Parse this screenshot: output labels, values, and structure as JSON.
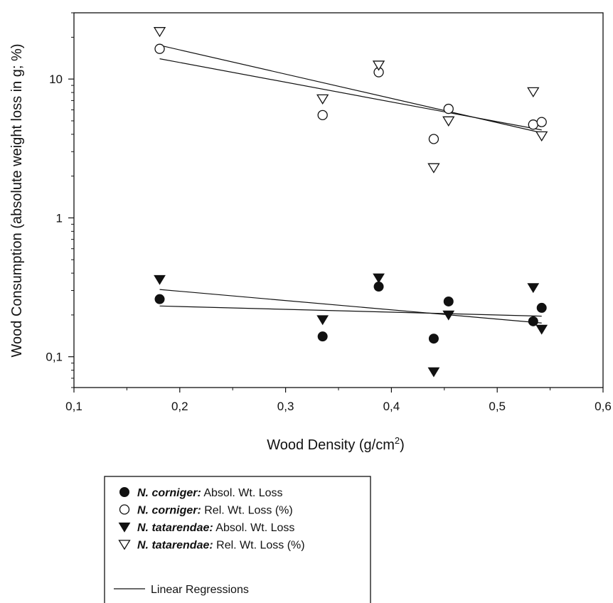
{
  "chart_data": {
    "type": "scatter",
    "title": "",
    "xlabel": "Wood Density (g/cm²)",
    "xlabel_base": "Wood Density (g/cm",
    "xlabel_sup": "2",
    "xlabel_close": ")",
    "ylabel": "Wood Consumption (absolute weight loss in g; %)",
    "xlim": [
      0.1,
      0.6
    ],
    "ylim": [
      0.06,
      30
    ],
    "y_scale": "log",
    "grid": false,
    "x_ticks": [
      "0,1",
      "0,2",
      "0,3",
      "0,4",
      "0,5",
      "0,6"
    ],
    "x_tick_values": [
      0.1,
      0.2,
      0.3,
      0.4,
      0.5,
      0.6
    ],
    "y_ticks": [
      "0,1",
      "1",
      "10"
    ],
    "y_tick_values": [
      0.1,
      1,
      10
    ],
    "legend_position": "below",
    "series": [
      {
        "name_bold": "N. corniger:",
        "name_rest": " Absol. Wt. Loss",
        "marker": "filled-circle",
        "x": [
          0.181,
          0.335,
          0.388,
          0.44,
          0.454,
          0.534,
          0.542
        ],
        "y": [
          0.26,
          0.14,
          0.32,
          0.135,
          0.25,
          0.18,
          0.225
        ],
        "fit": [
          [
            0.181,
            0.232
          ],
          [
            0.542,
            0.196
          ]
        ]
      },
      {
        "name_bold": "N. corniger:",
        "name_rest": " Rel. Wt. Loss (%)",
        "marker": "open-circle",
        "x": [
          0.181,
          0.335,
          0.388,
          0.44,
          0.454,
          0.534,
          0.542
        ],
        "y": [
          16.5,
          5.5,
          11.2,
          3.7,
          6.1,
          4.7,
          4.9
        ],
        "fit": [
          [
            0.181,
            17.5
          ],
          [
            0.542,
            4.1
          ]
        ]
      },
      {
        "name_bold": "N. tatarendae:",
        "name_rest": " Absol. Wt. Loss",
        "marker": "filled-triangle",
        "x": [
          0.181,
          0.335,
          0.388,
          0.44,
          0.454,
          0.534,
          0.542
        ],
        "y": [
          0.36,
          0.185,
          0.37,
          0.078,
          0.2,
          0.315,
          0.158
        ],
        "fit": [
          [
            0.181,
            0.305
          ],
          [
            0.542,
            0.175
          ]
        ]
      },
      {
        "name_bold": "N. tatarendae:",
        "name_rest": " Rel. Wt. Loss (%)",
        "marker": "open-triangle",
        "x": [
          0.181,
          0.335,
          0.388,
          0.44,
          0.454,
          0.534,
          0.542
        ],
        "y": [
          22.0,
          7.2,
          12.6,
          2.3,
          5.0,
          8.1,
          3.9
        ],
        "fit": [
          [
            0.181,
            14.0
          ],
          [
            0.542,
            4.3
          ]
        ]
      }
    ],
    "regression_legend": "Linear Regressions"
  },
  "colors": {
    "ink": "#111111",
    "background": "#ffffff"
  }
}
